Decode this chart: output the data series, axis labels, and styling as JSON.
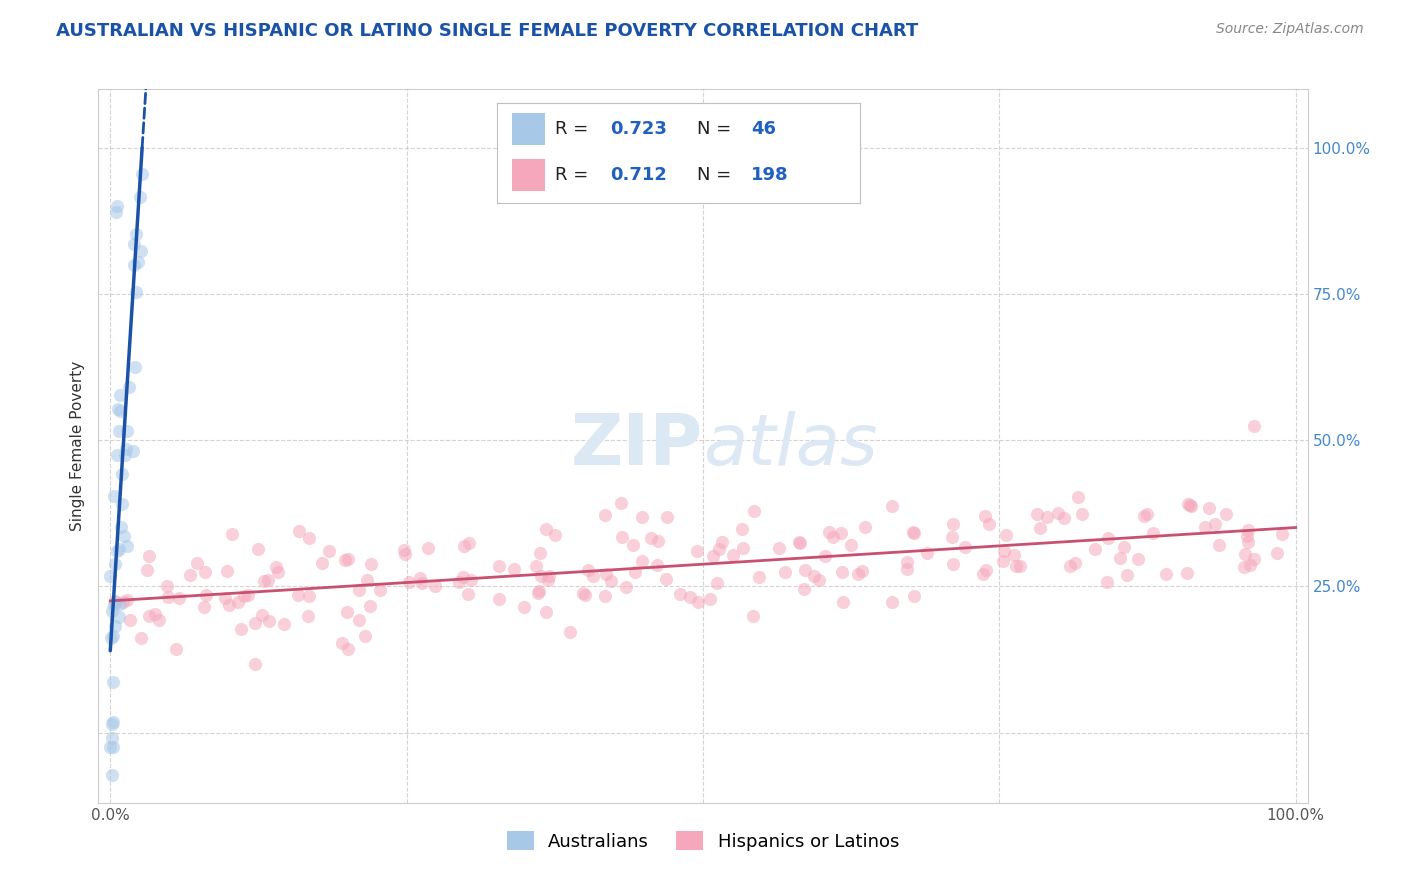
{
  "title": "AUSTRALIAN VS HISPANIC OR LATINO SINGLE FEMALE POVERTY CORRELATION CHART",
  "source": "Source: ZipAtlas.com",
  "ylabel": "Single Female Poverty",
  "legend_entries": [
    {
      "label": "Australians",
      "R": "0.723",
      "N": "46",
      "color": "#a8c8e8",
      "line_color": "#1a52a8"
    },
    {
      "label": "Hispanics or Latinos",
      "R": "0.712",
      "N": "198",
      "color": "#f5a8bc",
      "line_color": "#c85070"
    }
  ],
  "watermark_zip": "ZIP",
  "watermark_atlas": "atlas",
  "background_color": "#ffffff",
  "grid_color": "#c8c8c8",
  "title_color": "#1a52a8",
  "source_color": "#888888",
  "scatter_alpha": 0.55,
  "scatter_size": 90,
  "title_fontsize": 13,
  "source_fontsize": 10,
  "axis_label_fontsize": 11,
  "tick_fontsize": 11,
  "legend_fontsize": 13,
  "watermark_fontsize": 52,
  "watermark_color": "#dce8f4",
  "legend_R_N_color": "#2060c0",
  "right_tick_color": "#4488cc",
  "ytick_positions": [
    0,
    25,
    50,
    75,
    100
  ],
  "ytick_right_labels": [
    "",
    "25.0%",
    "50.0%",
    "75.0%",
    "100.0%"
  ],
  "xtick_positions": [
    0,
    25,
    50,
    75,
    100
  ],
  "xtick_labels": [
    "0.0%",
    "",
    "",
    "",
    "100.0%"
  ]
}
